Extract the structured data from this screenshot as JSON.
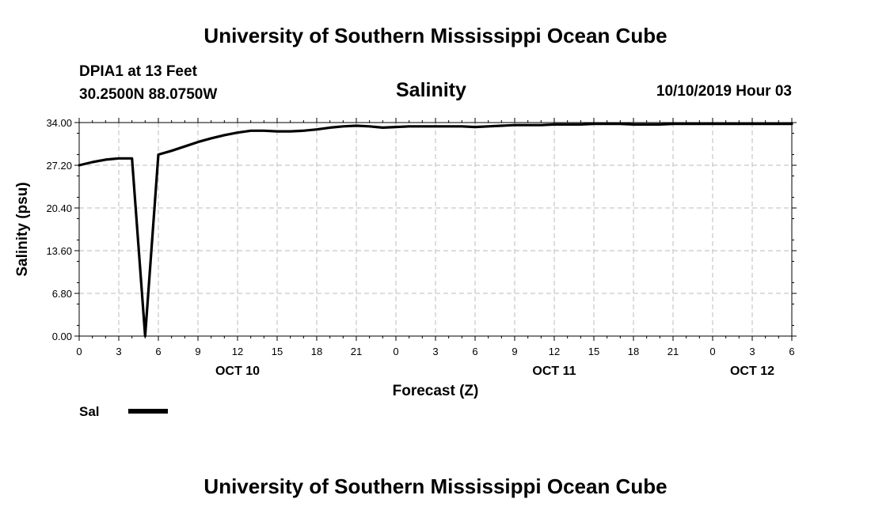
{
  "header": {
    "title": "University of Southern Mississippi Ocean Cube",
    "station_line1": "DPIA1 at 13 Feet",
    "station_line2": "30.2500N 88.0750W",
    "variable": "Salinity",
    "datetime": "10/10/2019 Hour 03"
  },
  "footer": {
    "title": "University of Southern Mississippi Ocean Cube"
  },
  "chart_data": {
    "type": "line",
    "title": "Salinity",
    "xlabel": "Forecast (Z)",
    "ylabel": "Salinity (psu)",
    "ylim": [
      0,
      34
    ],
    "xlim": [
      0,
      54
    ],
    "grid": true,
    "legend_position": "bottom-left",
    "yticks": [
      "0.00",
      "6.80",
      "13.60",
      "20.40",
      "27.20",
      "34.00"
    ],
    "xtick_labels": [
      "0",
      "3",
      "6",
      "9",
      "12",
      "15",
      "18",
      "21",
      "0",
      "3",
      "6",
      "9",
      "12",
      "15",
      "18",
      "21",
      "0",
      "3",
      "6"
    ],
    "date_labels": [
      {
        "label": "OCT 10",
        "hour_index": 12
      },
      {
        "label": "OCT 11",
        "hour_index": 36
      },
      {
        "label": "OCT 12",
        "hour_index": 51
      }
    ],
    "series": [
      {
        "name": "Sal",
        "color": "#000000",
        "x": [
          0,
          1,
          2,
          3,
          4,
          5,
          6,
          7,
          8,
          9,
          10,
          11,
          12,
          13,
          14,
          15,
          16,
          17,
          18,
          19,
          20,
          21,
          22,
          23,
          24,
          25,
          26,
          27,
          28,
          29,
          30,
          31,
          32,
          33,
          34,
          35,
          36,
          37,
          38,
          39,
          40,
          41,
          42,
          43,
          44,
          45,
          46,
          47,
          48,
          49,
          50,
          51,
          52,
          53,
          54
        ],
        "y": [
          27.2,
          27.7,
          28.1,
          28.3,
          28.3,
          0.0,
          28.9,
          29.5,
          30.2,
          30.9,
          31.5,
          32.0,
          32.4,
          32.7,
          32.7,
          32.6,
          32.6,
          32.7,
          32.9,
          33.2,
          33.4,
          33.5,
          33.4,
          33.2,
          33.3,
          33.4,
          33.4,
          33.4,
          33.4,
          33.4,
          33.3,
          33.4,
          33.5,
          33.6,
          33.6,
          33.6,
          33.7,
          33.7,
          33.7,
          33.8,
          33.8,
          33.8,
          33.7,
          33.7,
          33.7,
          33.8,
          33.8,
          33.8,
          33.8,
          33.8,
          33.8,
          33.8,
          33.8,
          33.8,
          33.8
        ]
      }
    ]
  }
}
